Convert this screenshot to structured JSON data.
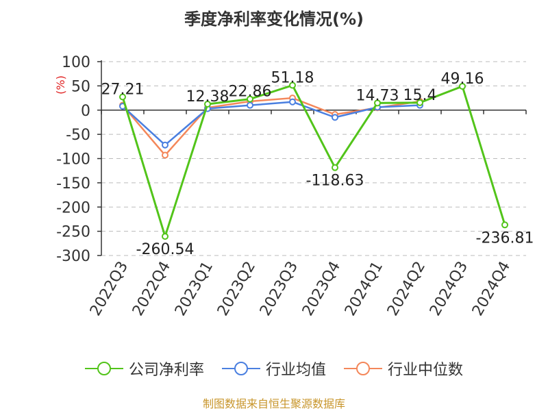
{
  "chart_data": {
    "type": "line",
    "title": "季度净利率变化情况(%)",
    "ylabel": "(%)",
    "categories": [
      "2022Q3",
      "2022Q4",
      "2023Q1",
      "2023Q2",
      "2023Q3",
      "2023Q4",
      "2024Q1",
      "2024Q2",
      "2024Q3",
      "2024Q4"
    ],
    "ylim": [
      -300,
      100
    ],
    "yticks": [
      100,
      50,
      0,
      -50,
      -100,
      -150,
      -200,
      -250,
      -300
    ],
    "grid": true,
    "legend_position": "bottom",
    "series": [
      {
        "name": "公司净利率",
        "color": "#52c41a",
        "values": [
          27.21,
          -260.54,
          12.38,
          22.86,
          51.18,
          -118.63,
          14.73,
          15.4,
          49.16,
          -236.81
        ],
        "labels": [
          "27.21",
          "-260.54",
          "12.38",
          "22.86",
          "51.18",
          "-118.63",
          "14.73",
          "15.4",
          "49.16",
          "-236.81"
        ]
      },
      {
        "name": "行业均值",
        "color": "#4a7fe0",
        "values": [
          8,
          -72,
          3,
          10,
          17,
          -15,
          6,
          10,
          null,
          null
        ]
      },
      {
        "name": "行业中位数",
        "color": "#f4875a",
        "values": [
          10,
          -93,
          5,
          18,
          25,
          -9,
          5,
          18,
          null,
          null
        ]
      }
    ]
  },
  "source": "制图数据来自恒生聚源数据库"
}
